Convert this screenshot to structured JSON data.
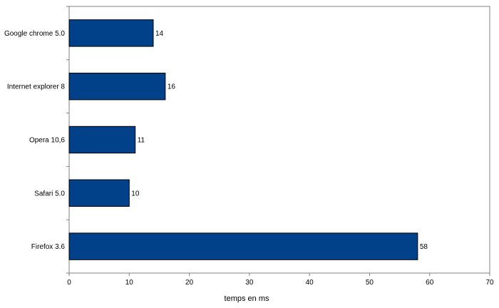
{
  "chart_data": {
    "type": "bar",
    "orientation": "horizontal",
    "categories": [
      "Google chrome 5.0",
      "Internet explorer 8",
      "Opera 10,6",
      "Safari 5.0",
      "Firefox 3.6"
    ],
    "values": [
      14,
      16,
      11,
      10,
      58
    ],
    "title": "",
    "xlabel": "temps en ms",
    "ylabel": "",
    "xlim": [
      0,
      70
    ],
    "xticks": [
      "0",
      "10",
      "20",
      "30",
      "40",
      "50",
      "60",
      "70"
    ],
    "grid": false,
    "legend": "none",
    "colors": {
      "bar_fill": "#00418a",
      "bar_stroke": "#000000",
      "axis": "#808080"
    }
  }
}
